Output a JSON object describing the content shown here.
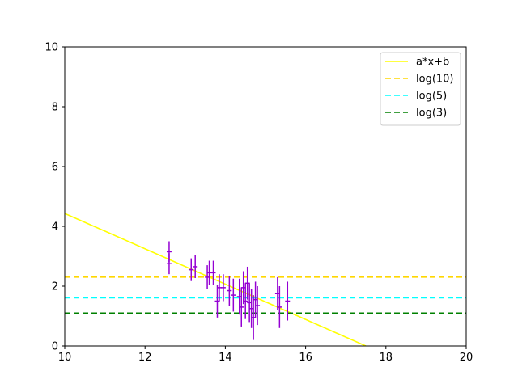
{
  "chart_data": {
    "type": "scatter",
    "xlim": [
      10,
      20
    ],
    "ylim": [
      0,
      10
    ],
    "xticks": [
      10,
      12,
      14,
      16,
      18,
      20
    ],
    "yticks": [
      0,
      2,
      4,
      6,
      8,
      10
    ],
    "grid": false,
    "legend_position": "top-right",
    "lines": [
      {
        "name": "a*x+b",
        "kind": "line",
        "color": "#ffff00",
        "dash": "solid",
        "points": [
          [
            10,
            4.43
          ],
          [
            17.5,
            0
          ]
        ]
      },
      {
        "name": "log(10)",
        "kind": "hline",
        "color": "#ffd700",
        "dash": "dashed",
        "y": 2.3026
      },
      {
        "name": "log(5)",
        "kind": "hline",
        "color": "#00ffff",
        "dash": "dashed",
        "y": 1.6094
      },
      {
        "name": "log(3)",
        "kind": "hline",
        "color": "#008000",
        "dash": "dashed",
        "y": 1.0986
      }
    ],
    "errorbar_series": {
      "color": "#9400d3",
      "points": [
        {
          "x": 12.6,
          "y": 3.15,
          "xerr": 0.06,
          "yerr": 0.35
        },
        {
          "x": 12.6,
          "y": 2.75,
          "xerr": 0.06,
          "yerr": 0.35
        },
        {
          "x": 13.15,
          "y": 2.55,
          "xerr": 0.06,
          "yerr": 0.38
        },
        {
          "x": 13.25,
          "y": 2.65,
          "xerr": 0.06,
          "yerr": 0.38
        },
        {
          "x": 13.55,
          "y": 2.3,
          "xerr": 0.06,
          "yerr": 0.4
        },
        {
          "x": 13.6,
          "y": 2.45,
          "xerr": 0.06,
          "yerr": 0.4
        },
        {
          "x": 13.7,
          "y": 2.45,
          "xerr": 0.06,
          "yerr": 0.4
        },
        {
          "x": 13.8,
          "y": 1.5,
          "xerr": 0.06,
          "yerr": 0.55
        },
        {
          "x": 13.85,
          "y": 1.95,
          "xerr": 0.06,
          "yerr": 0.45
        },
        {
          "x": 13.95,
          "y": 1.95,
          "xerr": 0.06,
          "yerr": 0.45
        },
        {
          "x": 14.1,
          "y": 1.85,
          "xerr": 0.06,
          "yerr": 0.5
        },
        {
          "x": 14.2,
          "y": 1.7,
          "xerr": 0.06,
          "yerr": 0.55
        },
        {
          "x": 14.35,
          "y": 1.65,
          "xerr": 0.06,
          "yerr": 0.6
        },
        {
          "x": 14.4,
          "y": 1.3,
          "xerr": 0.06,
          "yerr": 0.65
        },
        {
          "x": 14.45,
          "y": 1.95,
          "xerr": 0.06,
          "yerr": 0.55
        },
        {
          "x": 14.5,
          "y": 1.5,
          "xerr": 0.06,
          "yerr": 0.6
        },
        {
          "x": 14.55,
          "y": 2.1,
          "xerr": 0.06,
          "yerr": 0.55
        },
        {
          "x": 14.6,
          "y": 1.45,
          "xerr": 0.06,
          "yerr": 0.65
        },
        {
          "x": 14.65,
          "y": 1.25,
          "xerr": 0.06,
          "yerr": 0.65
        },
        {
          "x": 14.7,
          "y": 0.95,
          "xerr": 0.06,
          "yerr": 0.75
        },
        {
          "x": 14.75,
          "y": 1.55,
          "xerr": 0.06,
          "yerr": 0.6
        },
        {
          "x": 14.8,
          "y": 1.35,
          "xerr": 0.06,
          "yerr": 0.65
        },
        {
          "x": 15.3,
          "y": 1.75,
          "xerr": 0.06,
          "yerr": 0.55
        },
        {
          "x": 15.35,
          "y": 1.3,
          "xerr": 0.06,
          "yerr": 0.7
        },
        {
          "x": 15.55,
          "y": 1.5,
          "xerr": 0.06,
          "yerr": 0.65
        }
      ]
    }
  }
}
